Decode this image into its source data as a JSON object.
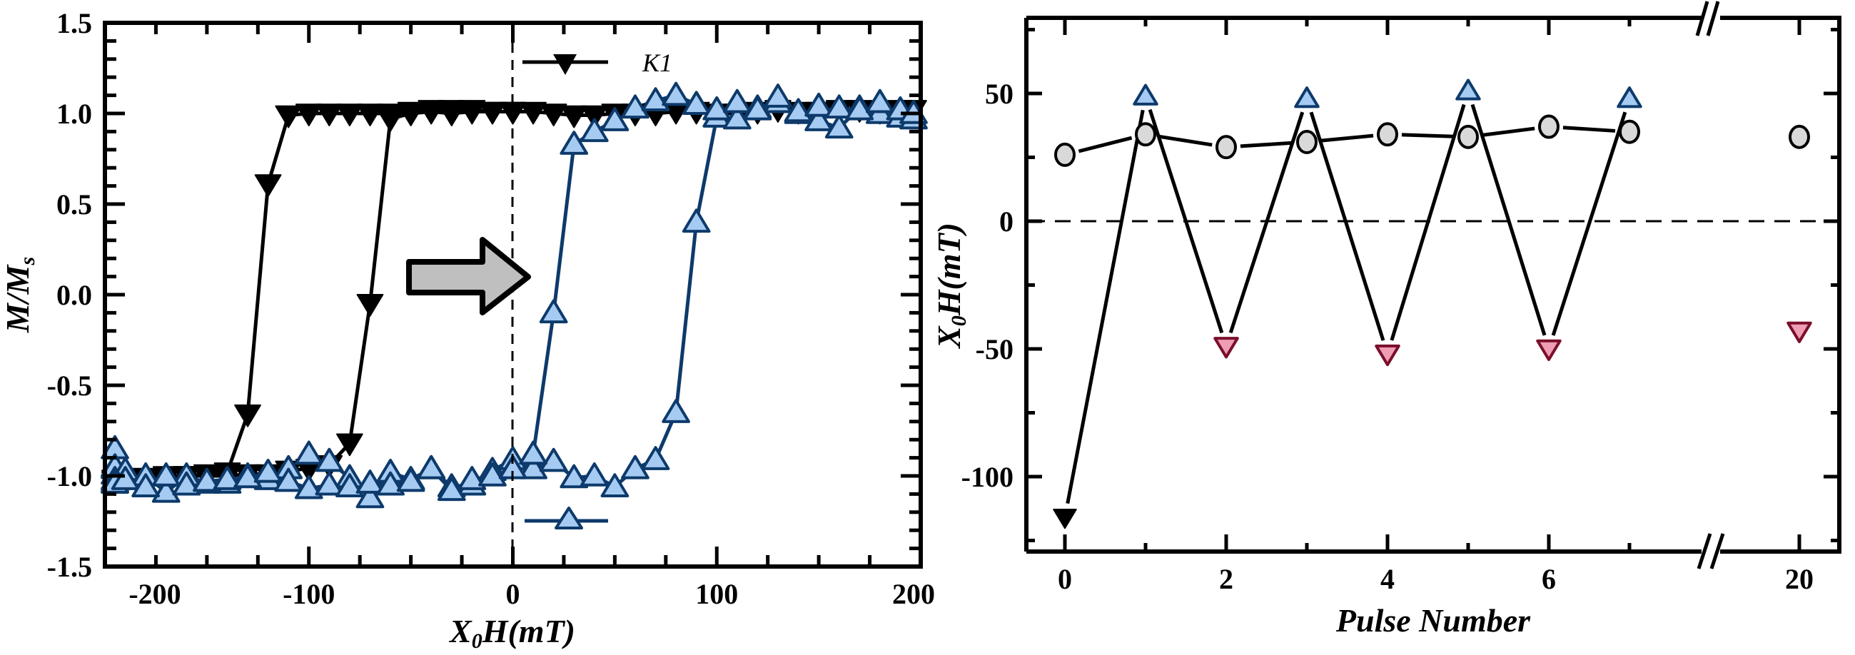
{
  "chart_data": [
    {
      "type": "scatter",
      "title": "",
      "xlabel": "X0H(mT)",
      "xlabel_main": "X",
      "xlabel_sub": "0",
      "xlabel_rest": "H(mT)",
      "ylabel": "M/Ms",
      "ylabel_main": "M/M",
      "ylabel_sub": "s",
      "xlim": [
        -200,
        200
      ],
      "ylim": [
        -1.5,
        1.5
      ],
      "xticks": [
        -200,
        -100,
        0,
        100,
        200
      ],
      "xtick_labels": [
        "-200",
        "-100",
        "0",
        "100",
        "200"
      ],
      "yticks": [
        1.5,
        1.0,
        0.5,
        0.0,
        -0.5,
        -1.0,
        -1.5
      ],
      "ytick_labels": [
        "1.5",
        "1.0",
        "0.5",
        "0.0",
        "-0.5",
        "-1.0",
        "-1.5"
      ],
      "vline_x": 0,
      "annotation": "right-arrow",
      "legend": [
        {
          "label": "K1",
          "marker": "triangle-down",
          "color": "#000000"
        },
        {
          "label": "",
          "marker": "triangle-up",
          "color": "#a6cbf2"
        }
      ],
      "series": [
        {
          "name": "K1",
          "marker": "triangle-down",
          "fill": "#000000",
          "stroke": "#000000",
          "branches": [
            {
              "x": [
                200,
                190,
                180,
                170,
                160,
                150,
                140,
                130,
                120,
                110,
                100,
                90,
                80,
                70,
                60,
                50,
                40,
                30,
                20,
                10,
                0,
                -10,
                -20,
                -30,
                -40,
                -50,
                -60,
                -70,
                -80,
                -90,
                -100,
                -110,
                -120,
                -130,
                -140,
                -150,
                -160,
                -170,
                -180,
                -190,
                -200,
                -210,
                -220
              ],
              "y": [
                1.02,
                1.02,
                1.01,
                1.02,
                1.02,
                1.01,
                1.01,
                1.02,
                1.01,
                1.0,
                1.0,
                1.01,
                1.01,
                1.0,
                1.0,
                1.0,
                0.99,
                0.99,
                1.0,
                1.01,
                1.01,
                1.01,
                1.02,
                1.02,
                1.02,
                1.01,
                1.0,
                1.0,
                1.0,
                1.0,
                1.0,
                0.99,
                0.61,
                -0.66,
                -0.98,
                -0.99,
                -1.0,
                -1.01,
                -1.03,
                -1.02,
                -1.03,
                -1.04,
                -1.02
              ]
            },
            {
              "x": [
                -220,
                -210,
                -200,
                -190,
                -180,
                -170,
                -160,
                -150,
                -140,
                -130,
                -120,
                -110,
                -100,
                -90,
                -80,
                -70,
                -60,
                -50,
                -40,
                -30,
                -20,
                -10,
                0
              ],
              "y": [
                -1.02,
                -1.02,
                -1.03,
                -1.02,
                -1.01,
                -1.0,
                -1.0,
                -1.0,
                -1.0,
                -0.99,
                -0.99,
                -0.97,
                -0.96,
                -0.94,
                -0.82,
                -0.05,
                0.97,
                1.0,
                1.01,
                1.0,
                1.01,
                1.01,
                1.01
              ]
            }
          ]
        },
        {
          "name": "blue",
          "marker": "triangle-up",
          "fill": "#a6cbf2",
          "stroke": "#0d3a6b",
          "branches": [
            {
              "x": [
                -230,
                -220,
                -210,
                -200,
                -190,
                -180,
                -170,
                -160,
                -150,
                -140,
                -130,
                -120,
                -110,
                -100,
                -90,
                -80,
                -70,
                -60,
                -50,
                -40,
                -30,
                -20,
                -10,
                0,
                10,
                20,
                30,
                40,
                50,
                60,
                70,
                80,
                90,
                100,
                110,
                120,
                130,
                140,
                150,
                160,
                170,
                180,
                190,
                200
              ],
              "y": [
                -0.85,
                -0.99,
                -0.96,
                -0.95,
                -0.97,
                -1.0,
                -1.09,
                -1.0,
                -1.04,
                -1.04,
                -1.0,
                -1.02,
                -0.96,
                -0.88,
                -0.92,
                -1.01,
                -1.12,
                -0.98,
                -1.02,
                -0.96,
                -1.06,
                -1.05,
                -0.97,
                -0.91,
                -0.96,
                -0.92,
                -1.01,
                -1.0,
                -1.06,
                -0.96,
                -0.91,
                -0.65,
                0.4,
                0.98,
                0.97,
                1.03,
                1.06,
                1.0,
                0.96,
                0.92,
                1.03,
                1.0,
                0.98,
                0.97
              ]
            },
            {
              "x": [
                -230,
                -220,
                -210,
                -200,
                -190,
                -180,
                -170,
                -160,
                -150,
                -140,
                -130,
                -120,
                -110,
                -100,
                -90,
                -80,
                -70,
                -60,
                -50,
                -40,
                -30,
                -20,
                -10,
                0,
                10,
                20,
                30,
                40,
                50,
                60,
                70,
                80,
                90,
                100,
                110,
                120,
                130,
                140,
                150,
                160,
                170,
                180,
                190,
                200
              ],
              "y": [
                -1.02,
                -1.03,
                -1.04,
                -1.04,
                -1.02,
                -1.06,
                -1.0,
                -1.05,
                -1.03,
                -1.02,
                -1.01,
                -0.98,
                -1.03,
                -1.07,
                -1.05,
                -1.06,
                -1.04,
                -1.05,
                -1.03,
                -0.96,
                -1.08,
                -1.02,
                -1.0,
                -0.96,
                -0.88,
                -0.1,
                0.83,
                0.9,
                0.96,
                1.03,
                1.07,
                1.1,
                1.05,
                1.02,
                1.06,
                1.02,
                1.09,
                1.01,
                1.04,
                1.03,
                1.02,
                1.06,
                1.02,
                1.0
              ]
            }
          ]
        }
      ]
    },
    {
      "type": "line",
      "title": "",
      "xlabel": "Pulse Number",
      "ylabel": "X0H(mT)",
      "ylabel_main": "X",
      "ylabel_sub": "0",
      "ylabel_rest": "H(mT)",
      "xlim": [
        -0.5,
        20.5
      ],
      "x_break": [
        7.5,
        19.5
      ],
      "ylim": [
        -130,
        80
      ],
      "xticks": [
        0,
        2,
        4,
        6,
        20
      ],
      "xtick_labels": [
        "0",
        "2",
        "4",
        "6",
        "20"
      ],
      "x_minor_ticks": [
        1,
        3,
        5,
        7
      ],
      "yticks": [
        50,
        0,
        -50,
        -100
      ],
      "ytick_labels": [
        "50",
        "0",
        "-50",
        "-100"
      ],
      "y_minor_ticks": [
        75,
        25,
        -25,
        -75,
        -125
      ],
      "hline_y": 0,
      "series": [
        {
          "name": "circles",
          "marker": "circle",
          "fill": "#d9d9d9",
          "stroke": "#000000",
          "connected": true,
          "x": [
            0,
            1,
            2,
            3,
            4,
            5,
            6,
            7,
            20
          ],
          "y": [
            26,
            34,
            29,
            31,
            34,
            33,
            37,
            35,
            33
          ]
        },
        {
          "name": "zigzag",
          "marker": "line",
          "stroke": "#000000",
          "connected": true,
          "x": [
            0,
            1,
            2,
            3,
            4,
            5,
            6,
            7
          ],
          "y": [
            -116,
            49,
            -49,
            48,
            -52,
            51,
            -50,
            48
          ]
        },
        {
          "name": "initial",
          "marker": "triangle-down",
          "fill": "#000000",
          "stroke": "#000000",
          "x": [
            0
          ],
          "y": [
            -116
          ]
        },
        {
          "name": "positive",
          "marker": "triangle-up",
          "fill": "#a6cbf2",
          "stroke": "#0d3a6b",
          "x": [
            1,
            3,
            5,
            7
          ],
          "y": [
            49,
            48,
            51,
            48
          ]
        },
        {
          "name": "negative",
          "marker": "triangle-down",
          "fill": "#ee9db4",
          "stroke": "#7a0f2a",
          "x": [
            2,
            4,
            6,
            20
          ],
          "y": [
            -49,
            -52,
            -50,
            -43
          ]
        }
      ]
    }
  ]
}
